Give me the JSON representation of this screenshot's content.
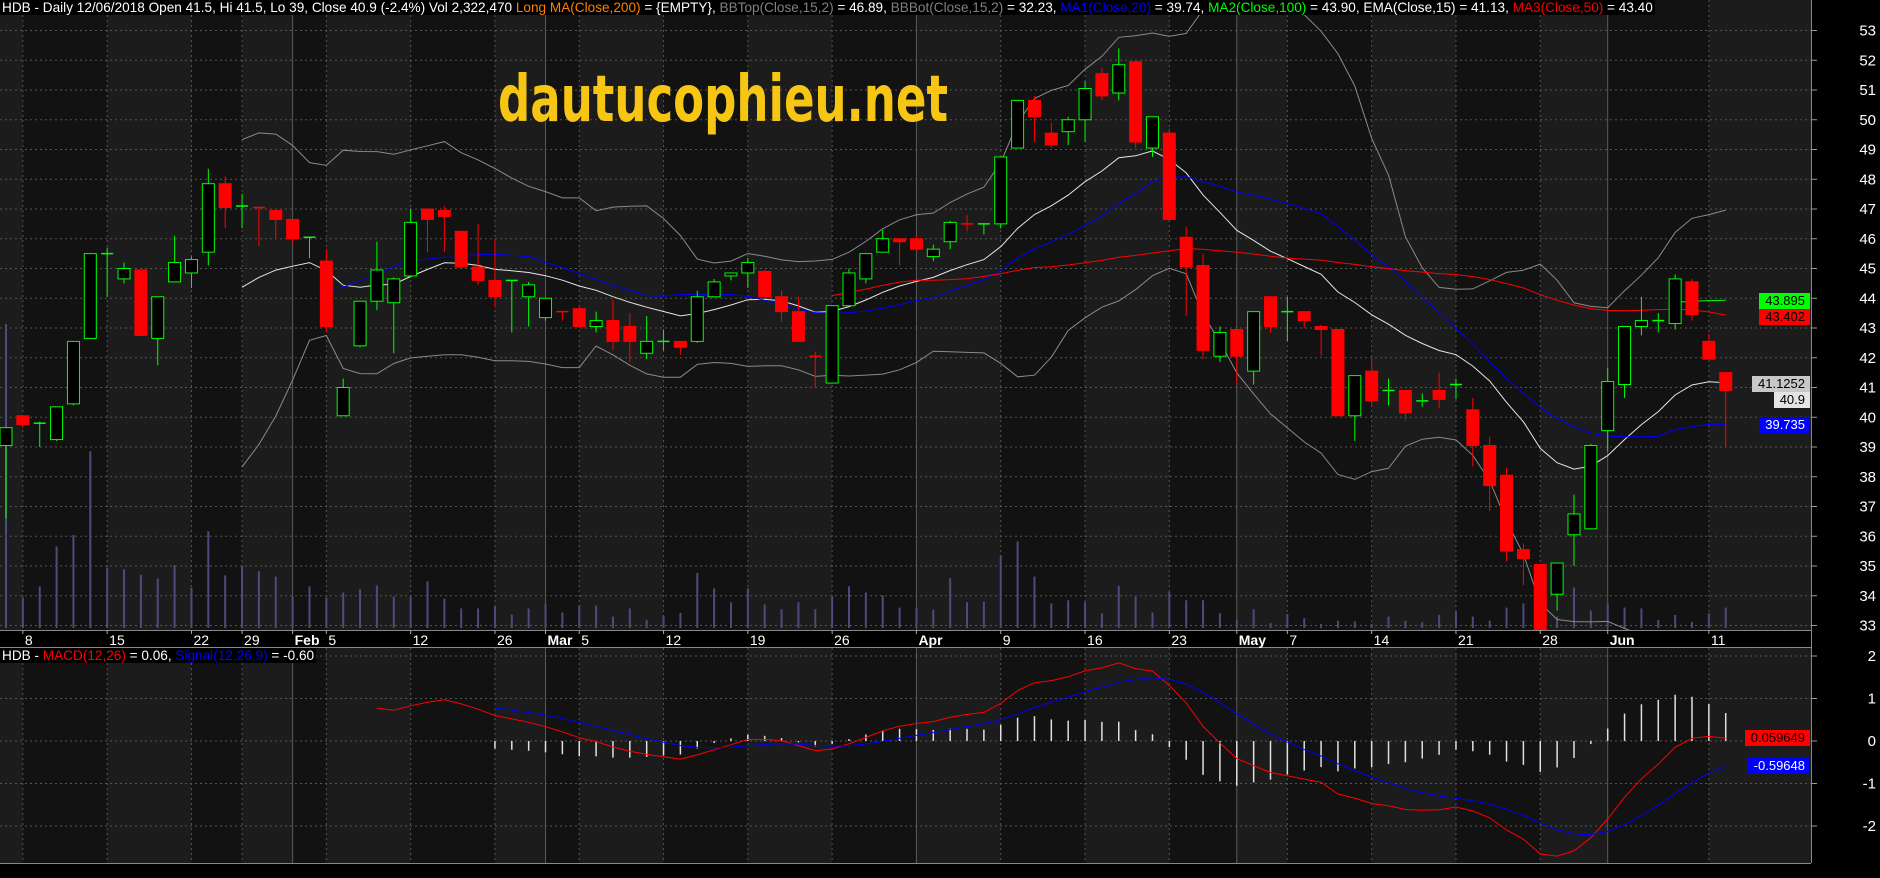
{
  "price_legend": {
    "parts": [
      {
        "text": "HDB - Daily 12/06/2018 Open 41.5, Hi 41.5, Lo 39, Close 40.9 (-2.4%) Vol 2,322,470 ",
        "color": "#ffffff"
      },
      {
        "text": "Long MA(Close,200)",
        "color": "#ff8000"
      },
      {
        "text": " = {EMPTY}, ",
        "color": "#ffffff"
      },
      {
        "text": "BBTop(Close,15,2)",
        "color": "#808080"
      },
      {
        "text": " = 46.89, ",
        "color": "#ffffff"
      },
      {
        "text": "BBBot(Close,15,2)",
        "color": "#808080"
      },
      {
        "text": " = 32.23, ",
        "color": "#ffffff"
      },
      {
        "text": "MA1(Close,20)",
        "color": "#0000ff"
      },
      {
        "text": " = 39.74, ",
        "color": "#ffffff"
      },
      {
        "text": "MA2(Close,100)",
        "color": "#00ff00"
      },
      {
        "text": " = 43.90, ",
        "color": "#ffffff"
      },
      {
        "text": "EMA(Close,15) = 41.13, ",
        "color": "#ffffff"
      },
      {
        "text": "MA3(Close,50)",
        "color": "#ff0000"
      },
      {
        "text": " = 43.40",
        "color": "#ffffff"
      }
    ]
  },
  "macd_legend": {
    "parts": [
      {
        "text": "HDB - ",
        "color": "#ffffff"
      },
      {
        "text": "MACD(12,26)",
        "color": "#ff0000"
      },
      {
        "text": " = 0.06, ",
        "color": "#ffffff"
      },
      {
        "text": "Signal(12,26,9)",
        "color": "#0000ff"
      },
      {
        "text": " = -0.60",
        "color": "#ffffff"
      }
    ]
  },
  "watermark": "dautucophieu.net",
  "colors": {
    "up": "#00ff00",
    "down": "#ff0000",
    "volume": "#4c4c7c",
    "bbands": "#8a8a8a",
    "ema15": "#e6e6e6",
    "ma20": "#0000ff",
    "ma50": "#ff0000",
    "ma100": "#00ff00",
    "macd": "#ff0000",
    "signal": "#0000ff",
    "histogram": "#e0e0e0",
    "watermark": "#f7c615",
    "pane_light": "#1c1c1c",
    "pane_dark": "#121212"
  },
  "chart_data": {
    "type": "candlestick",
    "symbol": "HDB",
    "interval": "Daily",
    "candle_fields": [
      "open",
      "high",
      "low",
      "close",
      "volume"
    ],
    "candles": [
      [
        39.05,
        39.65,
        36.6,
        39.65,
        34605000
      ],
      [
        40.05,
        40.05,
        39.65,
        39.75,
        3484000
      ],
      [
        39.8,
        39.85,
        39.0,
        39.8,
        4738000
      ],
      [
        39.25,
        40.35,
        39.2,
        40.35,
        9290000
      ],
      [
        40.45,
        42.55,
        40.4,
        42.55,
        10591000
      ],
      [
        42.65,
        45.5,
        42.65,
        45.5,
        20113000
      ],
      [
        45.5,
        45.7,
        44.05,
        45.5,
        6875000
      ],
      [
        44.65,
        45.2,
        44.5,
        45.0,
        6689000
      ],
      [
        44.95,
        44.95,
        42.75,
        42.75,
        6039000
      ],
      [
        42.65,
        44.05,
        41.75,
        44.05,
        5620000
      ],
      [
        44.55,
        46.1,
        44.55,
        45.2,
        7153000
      ],
      [
        44.85,
        45.4,
        44.35,
        45.3,
        4599000
      ],
      [
        45.55,
        48.35,
        45.1,
        47.85,
        11009000
      ],
      [
        47.85,
        48.1,
        46.35,
        47.05,
        5992000
      ],
      [
        47.1,
        47.5,
        46.35,
        47.1,
        7014000
      ],
      [
        47.05,
        47.05,
        45.75,
        47.05,
        6457000
      ],
      [
        46.95,
        46.95,
        46.0,
        46.65,
        5853000
      ],
      [
        46.65,
        46.65,
        45.85,
        46.0,
        3623000
      ],
      [
        46.05,
        46.05,
        45.35,
        46.05,
        4738000
      ],
      [
        45.25,
        45.65,
        42.85,
        43.05,
        3484000
      ],
      [
        40.05,
        41.3,
        40.05,
        41.0,
        4041000
      ],
      [
        42.4,
        43.9,
        42.35,
        43.9,
        4413000
      ],
      [
        43.9,
        45.9,
        43.6,
        44.95,
        4831000
      ],
      [
        43.85,
        44.7,
        42.15,
        44.65,
        3577000
      ],
      [
        44.75,
        47.0,
        44.7,
        46.55,
        3577000
      ],
      [
        47.0,
        47.0,
        45.55,
        46.65,
        5295000
      ],
      [
        46.95,
        47.1,
        45.55,
        46.75,
        3344000
      ],
      [
        46.25,
        46.25,
        45.0,
        45.05,
        2230000
      ],
      [
        45.05,
        46.5,
        44.45,
        44.6,
        2230000
      ],
      [
        44.6,
        46.0,
        43.7,
        44.05,
        2462000
      ],
      [
        44.6,
        44.6,
        42.85,
        44.6,
        1533000
      ],
      [
        44.05,
        44.55,
        43.05,
        44.45,
        2230000
      ],
      [
        43.35,
        44.0,
        43.25,
        44.0,
        2787000
      ],
      [
        43.55,
        43.55,
        43.25,
        43.55,
        1765000
      ],
      [
        43.65,
        43.7,
        43.0,
        43.05,
        2555000
      ],
      [
        43.05,
        43.55,
        42.85,
        43.25,
        2555000
      ],
      [
        43.25,
        43.95,
        42.25,
        42.55,
        1301000
      ],
      [
        43.05,
        43.5,
        41.85,
        42.55,
        2230000
      ],
      [
        42.15,
        43.4,
        41.95,
        42.55,
        929000
      ],
      [
        42.55,
        42.95,
        42.25,
        42.55,
        1394000
      ],
      [
        42.55,
        42.55,
        42.1,
        42.35,
        1719000
      ],
      [
        42.55,
        44.25,
        42.5,
        44.05,
        6271000
      ],
      [
        44.05,
        44.65,
        44.05,
        44.55,
        4506000
      ],
      [
        44.75,
        44.85,
        44.6,
        44.85,
        2926000
      ],
      [
        44.85,
        45.35,
        44.35,
        45.2,
        4506000
      ],
      [
        44.9,
        44.95,
        44.05,
        44.05,
        2694000
      ],
      [
        44.05,
        44.25,
        43.2,
        43.55,
        2137000
      ],
      [
        43.55,
        44.05,
        42.55,
        42.55,
        2926000
      ],
      [
        42.05,
        42.2,
        41.0,
        42.05,
        2137000
      ],
      [
        41.15,
        43.75,
        41.15,
        43.75,
        3577000
      ],
      [
        43.75,
        45.0,
        43.75,
        44.85,
        4738000
      ],
      [
        44.65,
        45.5,
        44.5,
        45.5,
        4041000
      ],
      [
        45.55,
        46.3,
        45.55,
        46.0,
        3716000
      ],
      [
        46.0,
        46.0,
        45.1,
        45.9,
        2323000
      ],
      [
        46.0,
        46.1,
        45.6,
        45.65,
        2323000
      ],
      [
        45.4,
        45.8,
        45.25,
        45.65,
        2090000
      ],
      [
        45.9,
        46.6,
        45.65,
        46.55,
        5667000
      ],
      [
        46.5,
        46.8,
        46.25,
        46.5,
        2926000
      ],
      [
        46.5,
        46.5,
        46.15,
        46.5,
        3019000
      ],
      [
        46.5,
        48.75,
        46.35,
        48.75,
        8268000
      ],
      [
        49.05,
        50.65,
        49.05,
        50.65,
        9847000
      ],
      [
        50.65,
        50.8,
        49.25,
        50.1,
        5853000
      ],
      [
        49.55,
        49.9,
        49.05,
        49.15,
        2787000
      ],
      [
        49.6,
        50.1,
        49.15,
        50.0,
        3159000
      ],
      [
        50.0,
        51.3,
        49.25,
        51.05,
        2926000
      ],
      [
        51.55,
        51.75,
        50.65,
        50.8,
        1672000
      ],
      [
        50.9,
        52.4,
        50.65,
        51.85,
        4784000
      ],
      [
        51.95,
        51.95,
        49.05,
        49.25,
        3577000
      ],
      [
        49.05,
        50.1,
        48.75,
        50.1,
        1765000
      ],
      [
        49.55,
        49.7,
        46.65,
        46.65,
        4088000
      ],
      [
        46.05,
        46.4,
        43.4,
        45.05,
        3159000
      ],
      [
        45.1,
        45.5,
        41.95,
        42.25,
        3159000
      ],
      [
        42.05,
        43.05,
        41.85,
        42.85,
        1672000
      ],
      [
        42.95,
        42.95,
        41.1,
        42.05,
        929000
      ],
      [
        41.55,
        43.55,
        41.1,
        43.55,
        2137000
      ],
      [
        44.05,
        44.05,
        42.85,
        43.05,
        557000
      ],
      [
        43.55,
        44.05,
        42.55,
        43.55,
        1579000
      ],
      [
        43.55,
        43.55,
        43.0,
        43.25,
        1115000
      ],
      [
        43.05,
        43.1,
        42.05,
        42.95,
        465000
      ],
      [
        42.95,
        42.95,
        40.05,
        40.05,
        836000
      ],
      [
        40.05,
        41.4,
        39.2,
        41.4,
        743000
      ],
      [
        41.55,
        42.0,
        40.35,
        40.55,
        465000
      ],
      [
        40.9,
        41.3,
        40.4,
        40.9,
        1301000
      ],
      [
        40.9,
        40.9,
        39.9,
        40.15,
        836000
      ],
      [
        40.55,
        40.8,
        40.35,
        40.55,
        650000
      ],
      [
        40.9,
        41.5,
        40.3,
        40.6,
        1486000
      ],
      [
        41.05,
        41.3,
        40.6,
        41.1,
        1858000
      ],
      [
        40.25,
        40.65,
        38.35,
        39.05,
        1301000
      ],
      [
        39.05,
        39.35,
        36.85,
        37.7,
        836000
      ],
      [
        38.05,
        38.3,
        35.15,
        35.5,
        2323000
      ],
      [
        35.55,
        35.75,
        34.35,
        35.25,
        2787000
      ],
      [
        35.05,
        35.05,
        32.6,
        32.7,
        1858000
      ],
      [
        34.05,
        35.1,
        33.5,
        35.1,
        1301000
      ],
      [
        36.05,
        37.4,
        35.0,
        36.75,
        4599000
      ],
      [
        36.25,
        39.1,
        36.25,
        39.05,
        1997000
      ],
      [
        39.55,
        41.65,
        38.85,
        41.2,
        2787000
      ],
      [
        41.1,
        43.05,
        40.65,
        43.05,
        2323000
      ],
      [
        43.05,
        44.05,
        42.75,
        43.25,
        2230000
      ],
      [
        43.25,
        43.5,
        42.85,
        43.25,
        929000
      ],
      [
        43.15,
        44.8,
        42.95,
        44.65,
        1486000
      ],
      [
        44.55,
        44.65,
        43.25,
        43.45,
        697000
      ],
      [
        42.55,
        42.8,
        41.95,
        41.95,
        1672000
      ],
      [
        41.5,
        41.5,
        39.0,
        40.9,
        2322470
      ]
    ],
    "x_ticks": [
      {
        "label": "8",
        "bar": 1
      },
      {
        "label": "15",
        "bar": 6
      },
      {
        "label": "22",
        "bar": 11
      },
      {
        "label": "29",
        "bar": 14
      },
      {
        "label": "Feb",
        "bar": 17,
        "month": true
      },
      {
        "label": "5",
        "bar": 19
      },
      {
        "label": "12",
        "bar": 24
      },
      {
        "label": "26",
        "bar": 29
      },
      {
        "label": "Mar",
        "bar": 32,
        "month": true
      },
      {
        "label": "5",
        "bar": 34
      },
      {
        "label": "12",
        "bar": 39
      },
      {
        "label": "19",
        "bar": 44
      },
      {
        "label": "26",
        "bar": 49
      },
      {
        "label": "Apr",
        "bar": 54,
        "month": true
      },
      {
        "label": "9",
        "bar": 59
      },
      {
        "label": "16",
        "bar": 64
      },
      {
        "label": "23",
        "bar": 69
      },
      {
        "label": "May",
        "bar": 73,
        "month": true
      },
      {
        "label": "7",
        "bar": 76
      },
      {
        "label": "14",
        "bar": 81
      },
      {
        "label": "21",
        "bar": 86
      },
      {
        "label": "28",
        "bar": 91
      },
      {
        "label": "Jun",
        "bar": 95,
        "month": true
      },
      {
        "label": "11",
        "bar": 101
      }
    ],
    "price_axis": {
      "min": 33,
      "max": 53,
      "ticks": [
        "33",
        "34",
        "35",
        "36",
        "37",
        "38",
        "39",
        "40",
        "41",
        "42",
        "43",
        "44",
        "45",
        "46",
        "47",
        "48",
        "49",
        "50",
        "51",
        "52",
        "53"
      ]
    },
    "macd_axis": {
      "ticks": [
        "2",
        "1",
        "0",
        "-1",
        "-2"
      ]
    },
    "indicators": {
      "bb_period": 15,
      "bb_width": 2,
      "ema": 15,
      "ma1": 20,
      "ma2": 100,
      "ma3": 50,
      "macd_fast": 12,
      "macd_slow": 26,
      "macd_signal": 9
    },
    "price_tags": [
      {
        "text": "43.895",
        "bg": "#00ff00",
        "fg": "#000000"
      },
      {
        "text": "43.402",
        "bg": "#ff0000",
        "fg": "#000000"
      },
      {
        "text": "41.1252",
        "bg": "#c8c8c8",
        "fg": "#000000"
      },
      {
        "text": "40.9",
        "bg": "#e4e4e4",
        "fg": "#000000"
      },
      {
        "text": "39.735",
        "bg": "#0000ff",
        "fg": "#ffffff"
      }
    ],
    "macd_tags": [
      {
        "text": "0.059649",
        "bg": "#ff0000",
        "fg": "#000000"
      },
      {
        "text": "-0.59648",
        "bg": "#0000ff",
        "fg": "#ffffff"
      }
    ]
  }
}
